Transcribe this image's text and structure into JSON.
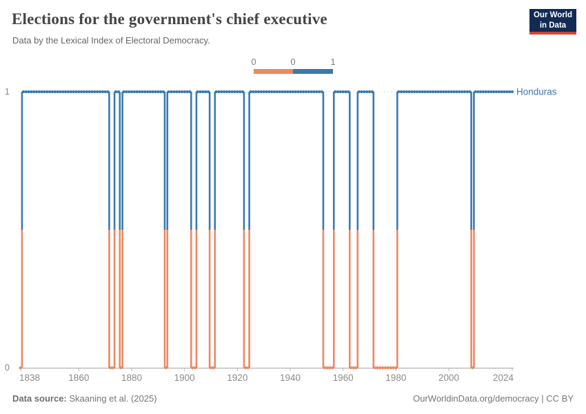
{
  "header": {
    "title": "Elections for the government's chief executive",
    "subtitle": "Data by the Lexical Index of Electoral Democracy.",
    "logo": {
      "line1": "Our World",
      "line2": "in Data"
    }
  },
  "legend": {
    "labels": [
      "0",
      "0",
      "1"
    ],
    "swatches": [
      {
        "value": 0,
        "color": "#EA8963"
      },
      {
        "value": 1,
        "color": "#3B79AD"
      }
    ]
  },
  "chart_data": {
    "type": "line",
    "step": "mid",
    "title": "Elections for the government's chief executive",
    "subtitle": "Data by the Lexical Index of Electoral Democracy.",
    "xlabel": "",
    "ylabel": "",
    "xlim": [
      1838,
      2024
    ],
    "ylim": [
      0,
      1
    ],
    "x_ticks": [
      1838,
      1860,
      1880,
      1900,
      1920,
      1940,
      1960,
      1980,
      2000,
      2024
    ],
    "y_ticks": [
      0,
      1
    ],
    "grid": "dashed-top-only",
    "legend_position": "top-center",
    "value_colors": {
      "0": "#EA8963",
      "1": "#3B79AD"
    },
    "series": [
      {
        "name": "Honduras",
        "color": "#3B79AD",
        "runs": [
          {
            "from": 1838,
            "to": 1838,
            "value": 0
          },
          {
            "from": 1839,
            "to": 1871,
            "value": 1
          },
          {
            "from": 1872,
            "to": 1873,
            "value": 0
          },
          {
            "from": 1874,
            "to": 1875,
            "value": 1
          },
          {
            "from": 1876,
            "to": 1876,
            "value": 0
          },
          {
            "from": 1877,
            "to": 1892,
            "value": 1
          },
          {
            "from": 1893,
            "to": 1893,
            "value": 0
          },
          {
            "from": 1894,
            "to": 1902,
            "value": 1
          },
          {
            "from": 1903,
            "to": 1904,
            "value": 0
          },
          {
            "from": 1905,
            "to": 1909,
            "value": 1
          },
          {
            "from": 1910,
            "to": 1911,
            "value": 0
          },
          {
            "from": 1912,
            "to": 1922,
            "value": 1
          },
          {
            "from": 1923,
            "to": 1924,
            "value": 0
          },
          {
            "from": 1925,
            "to": 1952,
            "value": 1
          },
          {
            "from": 1953,
            "to": 1956,
            "value": 0
          },
          {
            "from": 1957,
            "to": 1962,
            "value": 1
          },
          {
            "from": 1963,
            "to": 1965,
            "value": 0
          },
          {
            "from": 1966,
            "to": 1971,
            "value": 1
          },
          {
            "from": 1972,
            "to": 1980,
            "value": 0
          },
          {
            "from": 1981,
            "to": 2008,
            "value": 1
          },
          {
            "from": 2009,
            "to": 2009,
            "value": 0
          },
          {
            "from": 2010,
            "to": 2024,
            "value": 1
          }
        ]
      }
    ]
  },
  "footer": {
    "source_label": "Data source:",
    "source_value": " Skaaning et al. (2025)",
    "link": "OurWorldinData.org/democracy | CC BY"
  }
}
